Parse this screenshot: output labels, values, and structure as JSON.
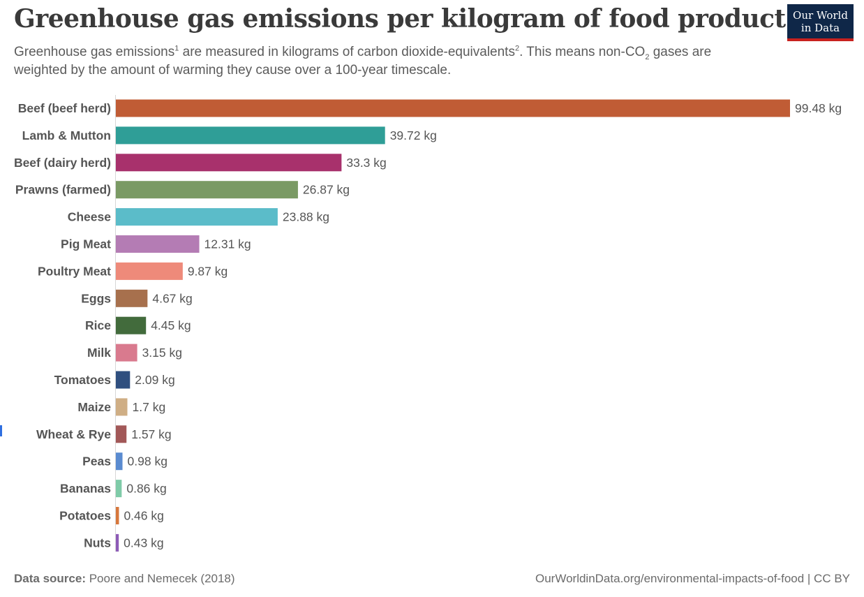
{
  "header": {
    "title": "Greenhouse gas emissions per kilogram of food product",
    "subtitle_part1": "Greenhouse gas emissions",
    "subtitle_sup1": "1",
    "subtitle_part2": " are measured in kilograms of carbon dioxide-equivalents",
    "subtitle_sup2": "2",
    "subtitle_part3": ". This means non-CO",
    "subtitle_sub": "2",
    "subtitle_part4": " gases are weighted by the amount of warming they cause over a 100-year timescale."
  },
  "logo": {
    "line1": "Our World",
    "line2": "in Data",
    "bg_color": "#0f2748",
    "accent_color": "#c8211e"
  },
  "footer": {
    "source_label": "Data source:",
    "source_text": " Poore and Nemecek (2018)",
    "url_text": "OurWorldinData.org/environmental-impacts-of-food | CC BY"
  },
  "chart_data": {
    "type": "bar",
    "orientation": "horizontal",
    "unit": "kg",
    "categories": [
      "Beef (beef herd)",
      "Lamb & Mutton",
      "Beef (dairy herd)",
      "Prawns (farmed)",
      "Cheese",
      "Pig Meat",
      "Poultry Meat",
      "Eggs",
      "Rice",
      "Milk",
      "Tomatoes",
      "Maize",
      "Wheat & Rye",
      "Peas",
      "Bananas",
      "Potatoes",
      "Nuts"
    ],
    "values": [
      99.48,
      39.72,
      33.3,
      26.87,
      23.88,
      12.31,
      9.87,
      4.67,
      4.45,
      3.15,
      2.09,
      1.7,
      1.57,
      0.98,
      0.86,
      0.46,
      0.43
    ],
    "value_labels": [
      "99.48 kg",
      "39.72 kg",
      "33.3 kg",
      "26.87 kg",
      "23.88 kg",
      "12.31 kg",
      "9.87 kg",
      "4.67 kg",
      "4.45 kg",
      "3.15 kg",
      "2.09 kg",
      "1.7 kg",
      "1.57 kg",
      "0.98 kg",
      "0.86 kg",
      "0.46 kg",
      "0.43 kg"
    ],
    "colors": [
      "#c05c35",
      "#2f9e97",
      "#a8316c",
      "#7a9a64",
      "#5bbcc9",
      "#b47cb4",
      "#ee8a7a",
      "#a7704d",
      "#426b3c",
      "#d97a8e",
      "#2f4f7f",
      "#cfae85",
      "#a25858",
      "#5a8bd0",
      "#7fcba8",
      "#d7773c",
      "#8d5bb7"
    ],
    "xlim": [
      0,
      99.48
    ],
    "grid": false,
    "legend": "none"
  }
}
